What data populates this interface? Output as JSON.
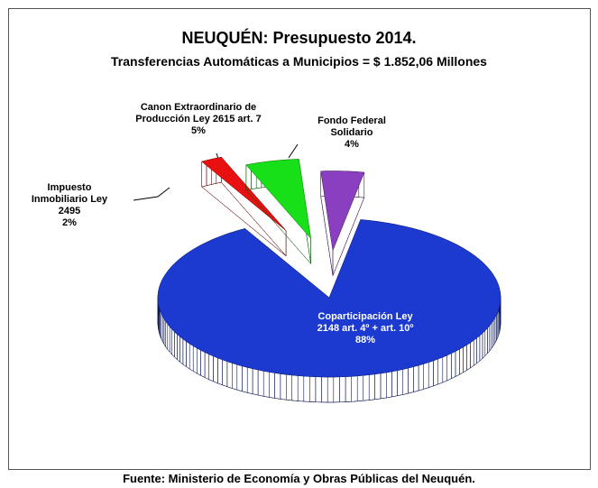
{
  "chart_data": {
    "type": "pie3d",
    "title": "NEUQUÉN: Presupuesto 2014.",
    "subtitle": "Transferencias Automáticas a Municipios = $ 1.852,06 Millones",
    "categories": [
      "Fondo Federal Solidario",
      "Coparticipación Ley 2148 art. 4º + art. 10º",
      "Impuesto Inmobiliario Ley 2495",
      "Canon Extraordinario de Producción Ley 2615 art. 7"
    ],
    "values": [
      4,
      88,
      2,
      5
    ],
    "value_labels": [
      "4%",
      "88%",
      "2%",
      "5%"
    ],
    "colors": [
      "#8a3fc0",
      "#1c3ad0",
      "#e81010",
      "#18e018"
    ],
    "source": "Fuente: Ministerio de Economía y Obras Públicas del Neuquén."
  }
}
